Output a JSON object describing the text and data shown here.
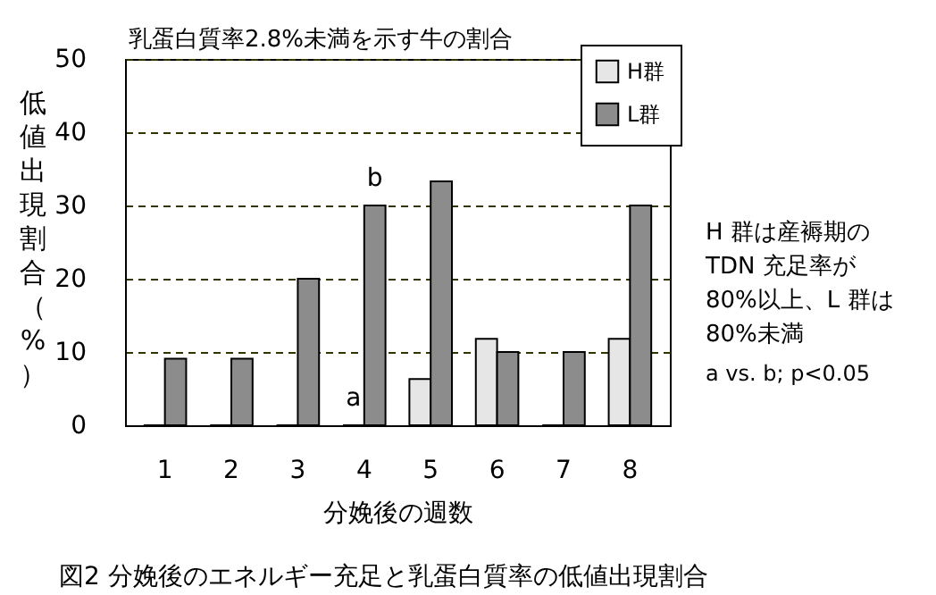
{
  "chart_data": {
    "type": "bar",
    "title": "乳蛋白質率2.8%未満を示す牛の割合",
    "xlabel": "分娩後の週数",
    "ylabel": "低値出現割合（%）",
    "categories": [
      "1",
      "2",
      "3",
      "4",
      "5",
      "6",
      "7",
      "8"
    ],
    "series": [
      {
        "name": "H群",
        "color": "#e6e6e6",
        "values": [
          0,
          0,
          0,
          0,
          6.3,
          11.8,
          0,
          11.8
        ]
      },
      {
        "name": "L群",
        "color": "#8c8c8c",
        "values": [
          9.1,
          9.1,
          20,
          30,
          33.3,
          10,
          10,
          30
        ]
      }
    ],
    "ylim": [
      0,
      50
    ],
    "yticks": [
      0,
      10,
      20,
      30,
      40,
      50
    ],
    "grid": "y",
    "legend": "top right",
    "annotations": [
      {
        "text": "a",
        "x": "4",
        "y": 0
      },
      {
        "text": "b",
        "x": "4",
        "y": 30
      },
      "H 群は産褥期の",
      "TDN 充足率が",
      "80%以上、L 群は",
      "80%未満",
      "a vs. b; p<0.05",
      "図2 分娩後のエネルギー充足と乳蛋白質率の低値出現割合"
    ]
  }
}
